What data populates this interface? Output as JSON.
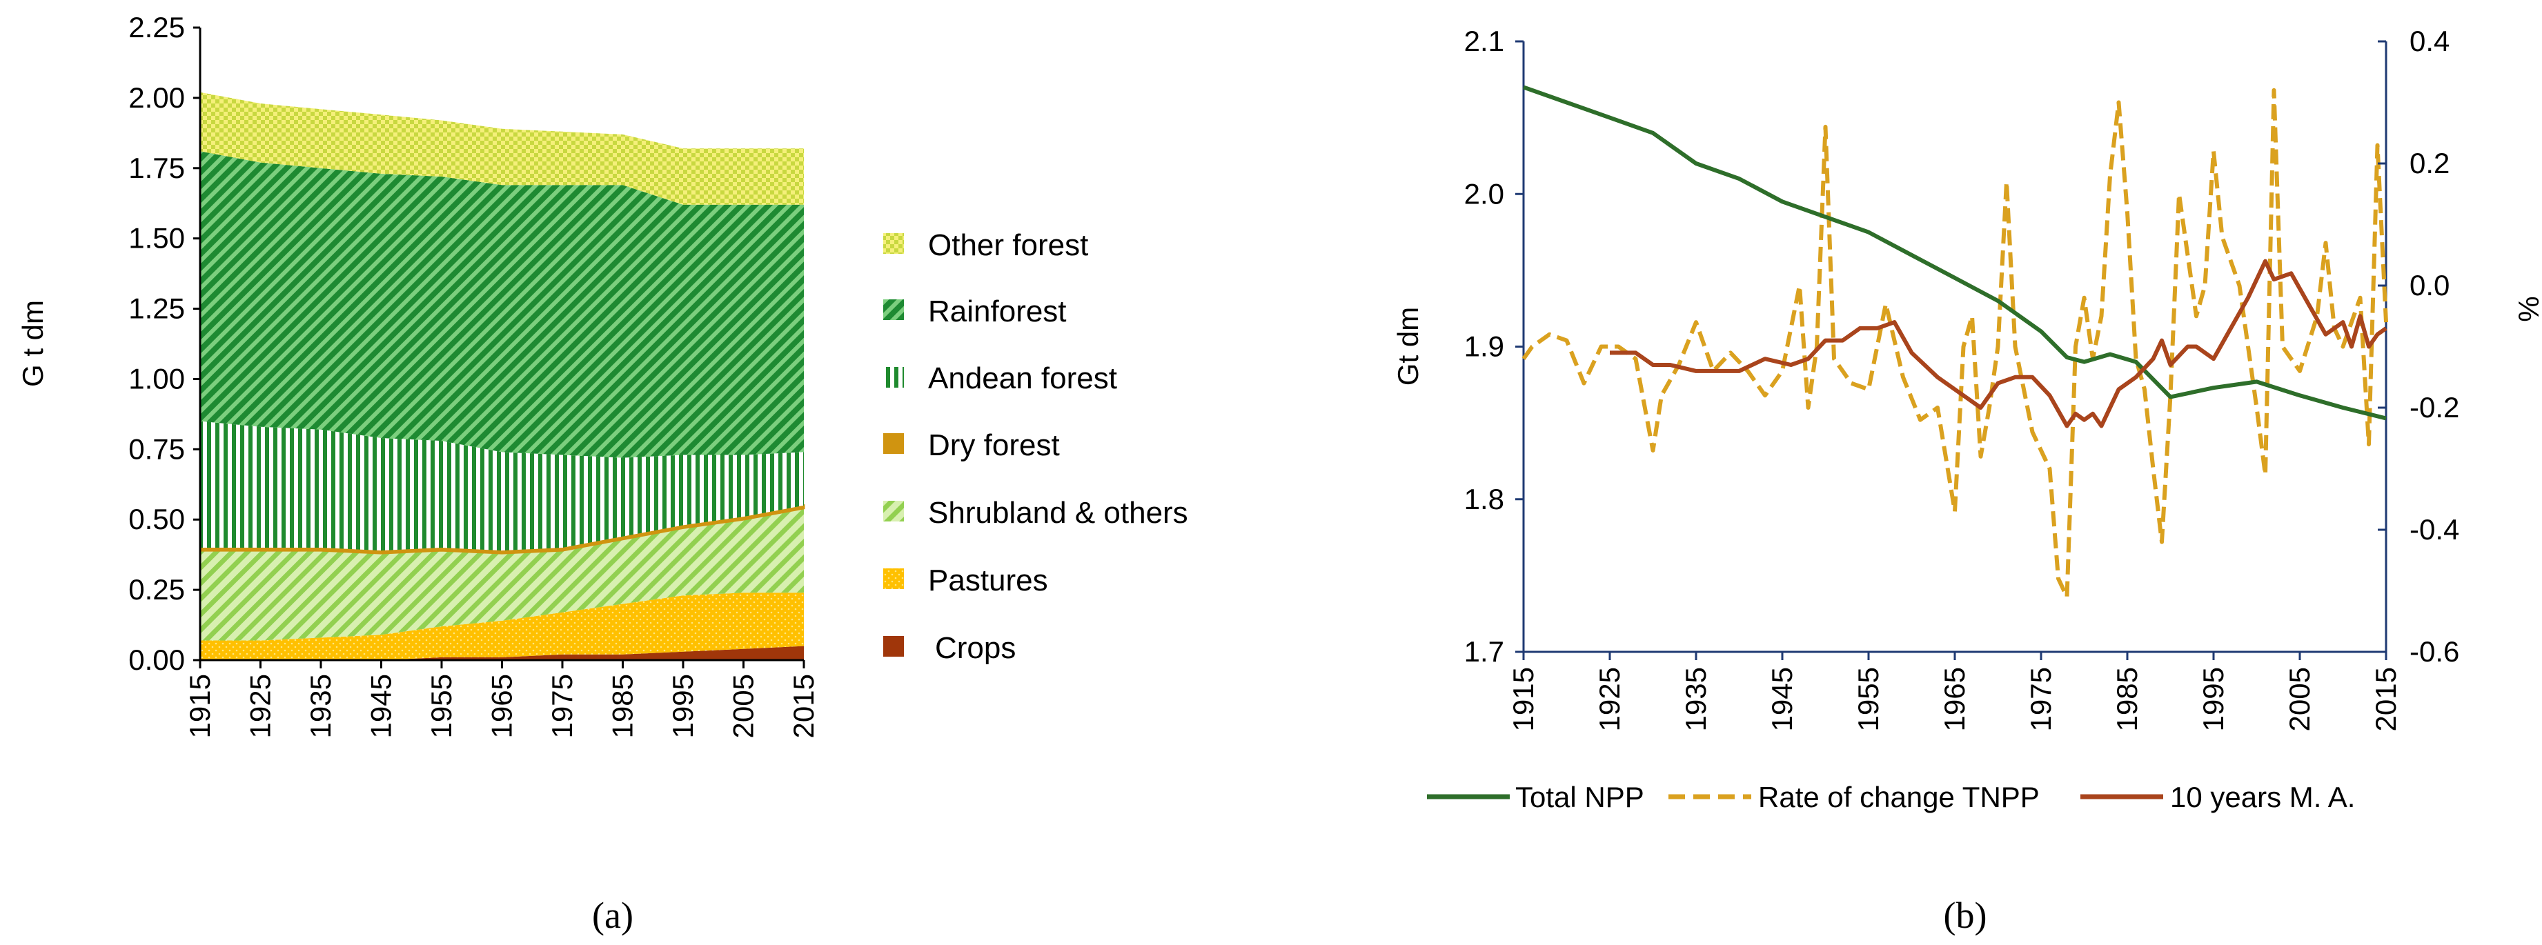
{
  "colors": {
    "crops": "#a0360a",
    "pastures": "#ffc000",
    "shrubland": "#92d050",
    "dry_forest": "#d09410",
    "andean": "#1f8a2e",
    "rainforest": "#1e8a32",
    "other_forest": "#c8d840",
    "total_npp": "#2e6e2a",
    "rate": "#daa11f",
    "ma": "#a9441c",
    "axis_blue": "#1f3a73"
  },
  "chart_data": [
    {
      "type": "area",
      "caption": "(a)",
      "ylabel": "G t dm",
      "ylim": [
        0,
        2.25
      ],
      "y_ticks": [
        "0.00",
        "0.25",
        "0.50",
        "0.75",
        "1.00",
        "1.25",
        "1.50",
        "1.75",
        "2.00",
        "2.25"
      ],
      "x_ticks": [
        "1915",
        "1925",
        "1935",
        "1945",
        "1955",
        "1965",
        "1975",
        "1985",
        "1995",
        "2005",
        "2015"
      ],
      "x": [
        1915,
        1925,
        1935,
        1945,
        1955,
        1965,
        1975,
        1985,
        1995,
        2005,
        2015
      ],
      "series": [
        {
          "name": "Crops",
          "values": [
            0.0,
            0.0,
            0.0,
            0.0,
            0.01,
            0.01,
            0.02,
            0.02,
            0.03,
            0.04,
            0.05
          ]
        },
        {
          "name": "Pastures",
          "values": [
            0.07,
            0.07,
            0.08,
            0.09,
            0.11,
            0.13,
            0.15,
            0.18,
            0.2,
            0.2,
            0.19
          ]
        },
        {
          "name": "Shrubland & others",
          "values": [
            0.32,
            0.32,
            0.31,
            0.29,
            0.27,
            0.24,
            0.22,
            0.23,
            0.24,
            0.26,
            0.3
          ]
        },
        {
          "name": "Dry forest",
          "values": [
            0.01,
            0.01,
            0.01,
            0.01,
            0.01,
            0.01,
            0.01,
            0.01,
            0.01,
            0.01,
            0.01
          ]
        },
        {
          "name": "Andean forest",
          "values": [
            0.45,
            0.43,
            0.42,
            0.4,
            0.38,
            0.35,
            0.33,
            0.28,
            0.25,
            0.22,
            0.19
          ]
        },
        {
          "name": "Rainforest",
          "values": [
            0.96,
            0.94,
            0.93,
            0.94,
            0.94,
            0.95,
            0.96,
            0.97,
            0.89,
            0.89,
            0.88
          ]
        },
        {
          "name": "Other forest",
          "values": [
            0.21,
            0.21,
            0.21,
            0.21,
            0.2,
            0.2,
            0.19,
            0.18,
            0.2,
            0.2,
            0.2
          ]
        }
      ],
      "legend_order": [
        "Other forest",
        "Rainforest",
        "Andean forest",
        "Dry forest",
        "Shrubland & others",
        "Pastures",
        "Crops"
      ]
    },
    {
      "type": "line",
      "caption": "(b)",
      "ylabel": "Gt dm",
      "y2label": "%",
      "ylim": [
        1.7,
        2.1
      ],
      "y2lim": [
        -0.6,
        0.4
      ],
      "y_ticks": [
        "1.7",
        "1.8",
        "1.9",
        "2.0",
        "2.1"
      ],
      "y2_ticks": [
        "-0.6",
        "-0.4",
        "-0.2",
        "0.0",
        "0.2",
        "0.4"
      ],
      "x_ticks": [
        "1915",
        "1925",
        "1935",
        "1945",
        "1955",
        "1965",
        "1975",
        "1985",
        "1995",
        "2005",
        "2015"
      ],
      "xlim": [
        1915,
        2015
      ],
      "series": [
        {
          "name": "Total NPP",
          "axis": "left",
          "x": [
            1915,
            1920,
            1925,
            1930,
            1935,
            1940,
            1945,
            1950,
            1955,
            1960,
            1965,
            1970,
            1975,
            1978,
            1980,
            1983,
            1986,
            1990,
            1995,
            2000,
            2005,
            2010,
            2015
          ],
          "values": [
            2.07,
            2.06,
            2.05,
            2.04,
            2.02,
            2.01,
            1.995,
            1.985,
            1.975,
            1.96,
            1.945,
            1.93,
            1.91,
            1.893,
            1.89,
            1.895,
            1.89,
            1.867,
            1.873,
            1.877,
            1.868,
            1.86,
            1.853
          ]
        },
        {
          "name": "Rate of change TNPP",
          "axis": "right",
          "dashed": true,
          "x": [
            1915,
            1916,
            1918,
            1920,
            1922,
            1924,
            1926,
            1928,
            1930,
            1931,
            1933,
            1935,
            1937,
            1939,
            1941,
            1943,
            1945,
            1947,
            1948,
            1949,
            1950,
            1951,
            1953,
            1955,
            1957,
            1959,
            1961,
            1963,
            1965,
            1966,
            1967,
            1968,
            1969,
            1970,
            1971,
            1972,
            1974,
            1976,
            1977,
            1978,
            1979,
            1980,
            1981,
            1982,
            1983,
            1984,
            1985,
            1986,
            1987,
            1988,
            1989,
            1990,
            1991,
            1993,
            1994,
            1995,
            1996,
            1998,
            1999,
            2000,
            2001,
            2002,
            2003,
            2005,
            2007,
            2008,
            2009,
            2010,
            2012,
            2013,
            2014,
            2015
          ],
          "values": [
            -0.12,
            -0.1,
            -0.08,
            -0.09,
            -0.16,
            -0.1,
            -0.1,
            -0.12,
            -0.27,
            -0.18,
            -0.13,
            -0.06,
            -0.14,
            -0.11,
            -0.14,
            -0.18,
            -0.14,
            0.0,
            -0.2,
            -0.1,
            0.26,
            -0.12,
            -0.16,
            -0.17,
            -0.03,
            -0.15,
            -0.22,
            -0.2,
            -0.37,
            -0.1,
            -0.05,
            -0.28,
            -0.2,
            -0.1,
            0.17,
            -0.1,
            -0.24,
            -0.3,
            -0.48,
            -0.51,
            -0.1,
            -0.02,
            -0.12,
            -0.05,
            0.18,
            0.3,
            0.12,
            -0.12,
            -0.17,
            -0.3,
            -0.42,
            -0.18,
            0.15,
            -0.05,
            0.0,
            0.22,
            0.08,
            0.0,
            -0.1,
            -0.2,
            -0.31,
            0.32,
            -0.1,
            -0.14,
            -0.05,
            0.07,
            -0.07,
            -0.1,
            -0.02,
            -0.26,
            0.23,
            -0.06
          ]
        },
        {
          "name": "10 years M. A.",
          "axis": "right",
          "x": [
            1925,
            1928,
            1930,
            1932,
            1935,
            1940,
            1943,
            1946,
            1948,
            1950,
            1952,
            1954,
            1956,
            1958,
            1960,
            1963,
            1966,
            1968,
            1970,
            1972,
            1974,
            1976,
            1978,
            1979,
            1980,
            1981,
            1982,
            1984,
            1986,
            1988,
            1989,
            1990,
            1992,
            1993,
            1995,
            1997,
            1999,
            2001,
            2002,
            2004,
            2006,
            2008,
            2010,
            2011,
            2012,
            2013,
            2014,
            2015
          ],
          "values": [
            -0.11,
            -0.11,
            -0.13,
            -0.13,
            -0.14,
            -0.14,
            -0.12,
            -0.13,
            -0.12,
            -0.09,
            -0.09,
            -0.07,
            -0.07,
            -0.06,
            -0.11,
            -0.15,
            -0.18,
            -0.2,
            -0.16,
            -0.15,
            -0.15,
            -0.18,
            -0.23,
            -0.21,
            -0.22,
            -0.21,
            -0.23,
            -0.17,
            -0.15,
            -0.12,
            -0.09,
            -0.13,
            -0.1,
            -0.1,
            -0.12,
            -0.07,
            -0.02,
            0.04,
            0.01,
            0.02,
            -0.03,
            -0.08,
            -0.06,
            -0.1,
            -0.05,
            -0.1,
            -0.08,
            -0.07
          ]
        }
      ]
    }
  ]
}
